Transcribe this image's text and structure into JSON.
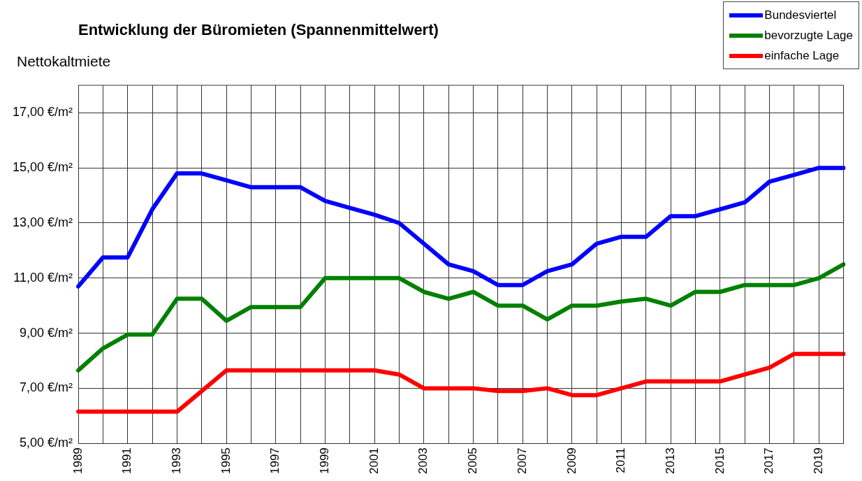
{
  "chart_data": {
    "type": "line",
    "title": "Entwicklung der Büromieten (Spannenmittelwert)",
    "ylabel": "Nettokaltmiete",
    "categories": [
      "1989",
      null,
      "1991",
      null,
      "1993",
      null,
      "1995",
      null,
      "1997",
      null,
      "1999",
      null,
      "2001",
      null,
      "2003",
      null,
      "2005",
      null,
      "2007",
      null,
      "2009",
      null,
      "2011",
      null,
      "2013",
      null,
      "2015",
      null,
      "2017",
      null,
      "2019",
      null
    ],
    "series": [
      {
        "name": "Bundesviertel",
        "color": "#0000ff",
        "values": [
          10.7,
          11.75,
          11.75,
          13.5,
          14.8,
          14.8,
          14.55,
          14.3,
          14.3,
          14.3,
          13.8,
          13.55,
          13.3,
          13.0,
          12.25,
          11.5,
          11.25,
          10.75,
          10.75,
          11.25,
          11.5,
          12.25,
          12.5,
          12.5,
          13.25,
          13.25,
          13.5,
          13.75,
          14.5,
          14.75,
          15.0,
          15.0
        ]
      },
      {
        "name": "bevorzugte Lage",
        "color": "#008000",
        "values": [
          7.65,
          8.45,
          8.95,
          8.95,
          10.25,
          10.25,
          9.45,
          9.95,
          9.95,
          9.95,
          11.0,
          11.0,
          11.0,
          11.0,
          10.5,
          10.25,
          10.5,
          10.0,
          10.0,
          9.5,
          10.0,
          10.0,
          10.15,
          10.25,
          10.0,
          10.5,
          10.5,
          10.75,
          10.75,
          10.75,
          11.0,
          11.5
        ]
      },
      {
        "name": "einfache Lage",
        "color": "#ff0000",
        "values": [
          6.15,
          6.15,
          6.15,
          6.15,
          6.15,
          6.9,
          7.65,
          7.65,
          7.65,
          7.65,
          7.65,
          7.65,
          7.65,
          7.5,
          7.0,
          7.0,
          7.0,
          6.9,
          6.9,
          7.0,
          6.75,
          6.75,
          7.0,
          7.25,
          7.25,
          7.25,
          7.25,
          7.5,
          7.75,
          8.25,
          8.25,
          8.25
        ]
      }
    ],
    "ylim": [
      5,
      18
    ],
    "yticks": [
      {
        "value": 5,
        "label": "5,00 €/m²"
      },
      {
        "value": 7,
        "label": "7,00 €/m²"
      },
      {
        "value": 9,
        "label": "9,00 €/m²"
      },
      {
        "value": 11,
        "label": "11,00 €/m²"
      },
      {
        "value": 13,
        "label": "13,00 €/m²"
      },
      {
        "value": 15,
        "label": "15,00 €/m²"
      },
      {
        "value": 17,
        "label": "17,00 €/m²"
      }
    ],
    "grid": true,
    "legend": "top right",
    "marker": "none",
    "line_style": "solid"
  }
}
